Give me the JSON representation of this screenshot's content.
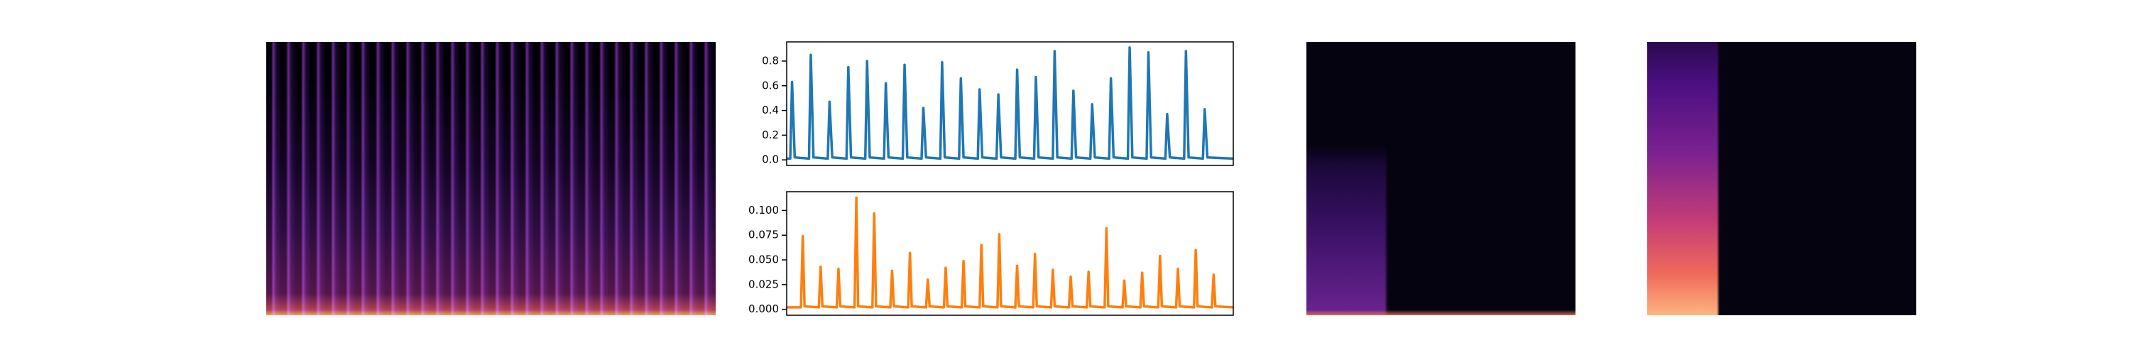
{
  "chart_data": [
    {
      "type": "line",
      "color": "#1f77b4",
      "x": [
        0,
        2,
        3,
        4.5,
        12.5,
        13.5,
        15,
        23,
        24,
        25.5,
        33.5,
        34.5,
        36,
        44,
        45,
        46.5,
        54.5,
        55.5,
        57,
        65,
        66,
        67.5,
        75.5,
        76.5,
        78,
        86,
        87,
        88.5,
        96.5,
        97.5,
        99,
        107,
        108,
        109.5,
        117.5,
        118.5,
        120,
        128,
        129,
        130.5,
        138.5,
        139.5,
        141,
        149,
        150,
        151.5,
        159.5,
        160.5,
        162,
        170,
        171,
        172.5,
        180.5,
        181.5,
        183,
        191,
        192,
        193.5,
        201.5,
        202.5,
        204,
        212,
        213,
        214.5,
        222.5,
        223.5,
        225,
        233,
        234,
        235.5,
        250
      ],
      "values": [
        0.01,
        0.01,
        0.63,
        0.02,
        0.01,
        0.85,
        0.02,
        0.01,
        0.47,
        0.02,
        0.01,
        0.75,
        0.02,
        0.01,
        0.8,
        0.02,
        0.01,
        0.62,
        0.02,
        0.01,
        0.77,
        0.02,
        0.01,
        0.42,
        0.02,
        0.01,
        0.79,
        0.02,
        0.01,
        0.66,
        0.02,
        0.01,
        0.57,
        0.02,
        0.01,
        0.53,
        0.02,
        0.01,
        0.73,
        0.02,
        0.01,
        0.67,
        0.02,
        0.01,
        0.88,
        0.02,
        0.01,
        0.56,
        0.02,
        0.01,
        0.45,
        0.02,
        0.01,
        0.66,
        0.02,
        0.01,
        0.91,
        0.02,
        0.01,
        0.87,
        0.02,
        0.01,
        0.37,
        0.02,
        0.01,
        0.88,
        0.02,
        0.01,
        0.41,
        0.02,
        0.01
      ],
      "xlim": [
        0,
        250
      ],
      "ylim": [
        -0.045,
        0.955
      ],
      "yticks": [
        {
          "value": 0,
          "label": "0.0"
        },
        {
          "value": 0.2,
          "label": "0.2"
        },
        {
          "value": 0.4,
          "label": "0.4"
        },
        {
          "value": 0.6,
          "label": "0.6"
        },
        {
          "value": 0.8,
          "label": "0.8"
        }
      ]
    },
    {
      "type": "line",
      "color": "#ff7f0e",
      "x": [
        0,
        8,
        9,
        10,
        18,
        19,
        20,
        28,
        29,
        30,
        38,
        39,
        40,
        48,
        49,
        50,
        58,
        59,
        60,
        68,
        69,
        70,
        78,
        79,
        80,
        88,
        89,
        90,
        98,
        99,
        100,
        108,
        109,
        110,
        118,
        119,
        120,
        128,
        129,
        130,
        138,
        139,
        140,
        148,
        149,
        150,
        158,
        159,
        160,
        168,
        169,
        170,
        178,
        179,
        180,
        188,
        189,
        190,
        198,
        199,
        200,
        208,
        209,
        210,
        218,
        219,
        220,
        228,
        229,
        230,
        238,
        239,
        240,
        250
      ],
      "values": [
        0.002,
        0.002,
        0.074,
        0.003,
        0.002,
        0.043,
        0.003,
        0.002,
        0.041,
        0.003,
        0.002,
        0.113,
        0.003,
        0.002,
        0.097,
        0.003,
        0.002,
        0.039,
        0.003,
        0.002,
        0.057,
        0.003,
        0.002,
        0.03,
        0.003,
        0.002,
        0.042,
        0.003,
        0.002,
        0.049,
        0.003,
        0.002,
        0.065,
        0.003,
        0.002,
        0.076,
        0.003,
        0.002,
        0.044,
        0.003,
        0.002,
        0.056,
        0.003,
        0.002,
        0.04,
        0.003,
        0.002,
        0.033,
        0.003,
        0.002,
        0.038,
        0.003,
        0.002,
        0.082,
        0.003,
        0.002,
        0.029,
        0.003,
        0.002,
        0.037,
        0.003,
        0.002,
        0.054,
        0.003,
        0.002,
        0.041,
        0.003,
        0.002,
        0.06,
        0.003,
        0.002,
        0.035,
        0.003,
        0.002
      ],
      "xlim": [
        0,
        250
      ],
      "ylim": [
        -0.006,
        0.119
      ],
      "yticks": [
        {
          "value": 0,
          "label": "0.000"
        },
        {
          "value": 0.025,
          "label": "0.025"
        },
        {
          "value": 0.05,
          "label": "0.050"
        },
        {
          "value": 0.075,
          "label": "0.075"
        },
        {
          "value": 0.1,
          "label": "0.100"
        }
      ]
    }
  ]
}
